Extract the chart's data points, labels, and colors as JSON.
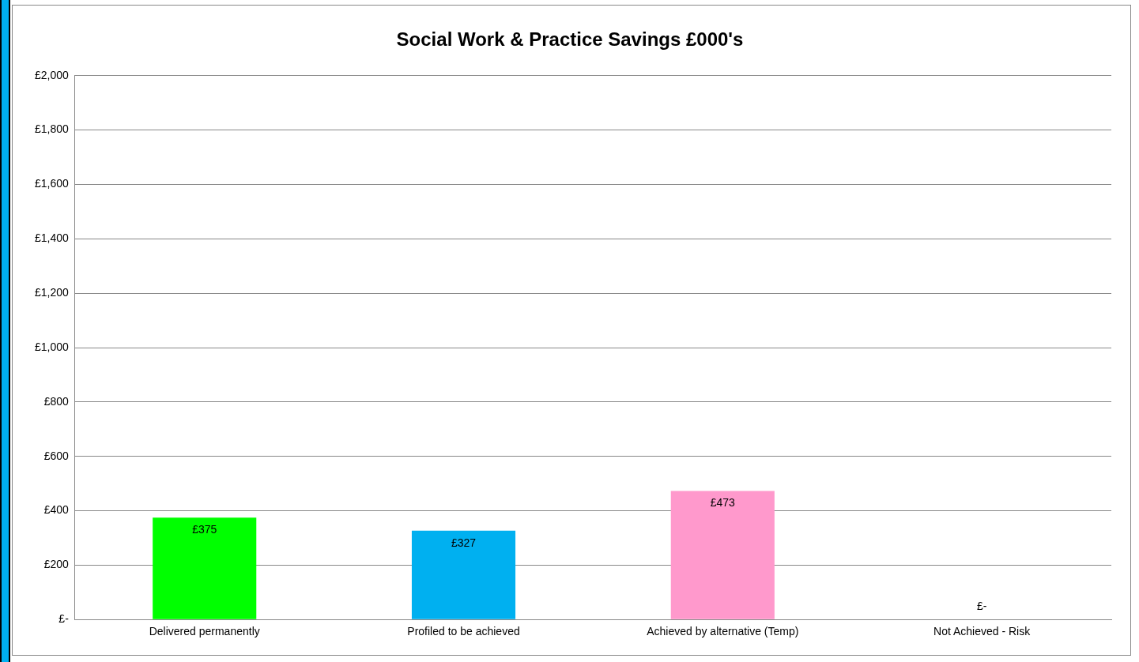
{
  "chart_data": {
    "type": "bar",
    "title": "Social Work & Practice Savings £000's",
    "categories": [
      "Delivered permanently",
      "Profiled to be achieved",
      "Achieved by alternative (Temp)",
      "Not Achieved - Risk"
    ],
    "values": [
      375,
      327,
      473,
      0
    ],
    "colors": [
      "#00ff00",
      "#00b0f0",
      "#ff99cc",
      "#ff0000"
    ],
    "value_labels": [
      "£375",
      "£327",
      "£473",
      "£-"
    ],
    "ylim": [
      0,
      2000
    ],
    "yticks": [
      {
        "value": 0,
        "label": "£-"
      },
      {
        "value": 200,
        "label": "£200"
      },
      {
        "value": 400,
        "label": "£400"
      },
      {
        "value": 600,
        "label": "£600"
      },
      {
        "value": 800,
        "label": "£800"
      },
      {
        "value": 1000,
        "label": "£1,000"
      },
      {
        "value": 1200,
        "label": "£1,200"
      },
      {
        "value": 1400,
        "label": "£1,400"
      },
      {
        "value": 1600,
        "label": "£1,600"
      },
      {
        "value": 1800,
        "label": "£1,800"
      },
      {
        "value": 2000,
        "label": "£2,000"
      }
    ],
    "grid": "y",
    "legend": false
  }
}
